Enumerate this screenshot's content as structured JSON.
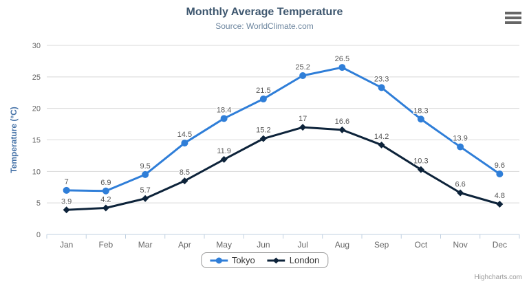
{
  "chart_data": {
    "type": "line",
    "title": "Monthly Average Temperature",
    "subtitle": "Source: WorldClimate.com",
    "xlabel": "",
    "ylabel": "Temperature (°C)",
    "categories": [
      "Jan",
      "Feb",
      "Mar",
      "Apr",
      "May",
      "Jun",
      "Jul",
      "Aug",
      "Sep",
      "Oct",
      "Nov",
      "Dec"
    ],
    "series": [
      {
        "name": "Tokyo",
        "color": "#2f7ed8",
        "marker": "circle",
        "values": [
          7,
          6.9,
          9.5,
          14.5,
          18.4,
          21.5,
          25.2,
          26.5,
          23.3,
          18.3,
          13.9,
          9.6
        ]
      },
      {
        "name": "London",
        "color": "#0d233a",
        "marker": "diamond",
        "values": [
          3.9,
          4.2,
          5.7,
          8.5,
          11.9,
          15.2,
          17,
          16.6,
          14.2,
          10.3,
          6.6,
          4.8
        ]
      }
    ],
    "ylim": [
      0,
      30
    ],
    "ytick_interval": 5,
    "grid": true,
    "data_labels": true,
    "legend_position": "bottom-center"
  },
  "credits": {
    "text": "Highcharts.com"
  },
  "style_colors": {
    "title": "#3e576f",
    "subtitle": "#6d869f",
    "axis_title": "#4572a7",
    "axis_labels": "#666666",
    "data_labels": "#555555",
    "grid_line": "#d8d8d8",
    "axis_line": "#c0d0e0",
    "legend_text": "#333333",
    "legend_border": "#999999",
    "credits": "#999999",
    "menu_icon": "#666666"
  }
}
